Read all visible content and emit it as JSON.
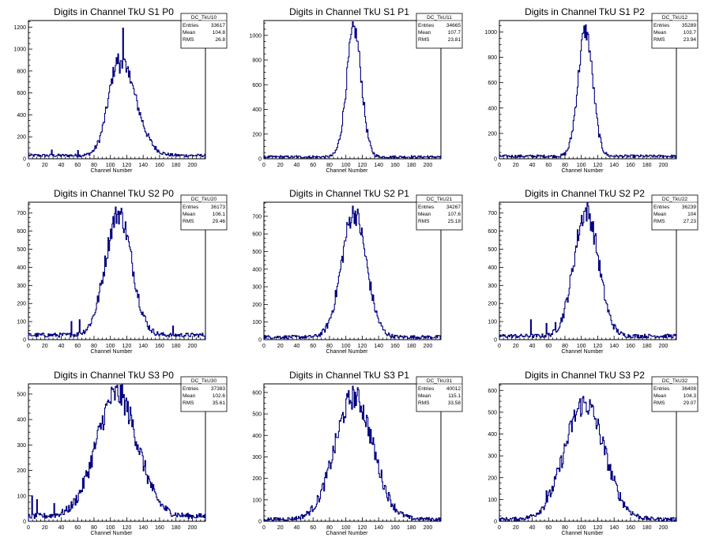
{
  "common": {
    "xlabel": "Channel Number",
    "stats_labels": [
      "Entries",
      "Mean",
      "RMS"
    ],
    "line_color": "#000080",
    "x_range": [
      0,
      216
    ]
  },
  "chart_data": [
    {
      "type": "histogram",
      "title": "Digits in Channel TkU S1 P0",
      "stats_name": "DC_TkU10",
      "entries": "33617",
      "mean": "104.8",
      "rms": "26.8",
      "xticks": [
        0,
        20,
        40,
        60,
        80,
        100,
        120,
        140,
        160,
        180,
        200
      ],
      "yticks": [
        0,
        200,
        400,
        600,
        800,
        1000,
        1200
      ],
      "ylim": [
        0,
        1260
      ],
      "bg": 30,
      "peak_center": 111,
      "peak_sigma": 13,
      "peak_height": 910,
      "tail": "right",
      "spikes": [
        {
          "x": 111,
          "y": 780
        },
        {
          "x": 115,
          "y": 1190
        },
        {
          "x": 119,
          "y": 790
        },
        {
          "x": 123,
          "y": 800
        },
        {
          "x": 28,
          "y": 80
        },
        {
          "x": 60,
          "y": 75
        }
      ]
    },
    {
      "type": "histogram",
      "title": "Digits in Channel TkU S1 P1",
      "stats_name": "DC_TkU11",
      "entries": "34665",
      "mean": "107.7",
      "rms": "23.81",
      "xticks": [
        0,
        20,
        40,
        60,
        80,
        100,
        120,
        140,
        160,
        180,
        200
      ],
      "yticks": [
        0,
        200,
        400,
        600,
        800,
        1000
      ],
      "ylim": [
        0,
        1120
      ],
      "bg": 15,
      "peak_center": 110,
      "peak_sigma": 9,
      "peak_height": 1050,
      "tail": "both",
      "spikes": []
    },
    {
      "type": "histogram",
      "title": "Digits in Channel TkU S1 P2",
      "stats_name": "DC_TkU12",
      "entries": "35289",
      "mean": "103.7",
      "rms": "23.94",
      "xticks": [
        0,
        20,
        40,
        60,
        80,
        100,
        120,
        140,
        160,
        180,
        200
      ],
      "yticks": [
        0,
        200,
        400,
        600,
        800,
        1000
      ],
      "ylim": [
        0,
        1090
      ],
      "bg": 20,
      "peak_center": 105,
      "peak_sigma": 9,
      "peak_height": 1010,
      "tail": "both",
      "spikes": []
    },
    {
      "type": "histogram",
      "title": "Digits in Channel TkU S2 P0",
      "stats_name": "DC_TkU20",
      "entries": "36173",
      "mean": "106.1",
      "rms": "29.46",
      "xticks": [
        0,
        20,
        40,
        60,
        80,
        100,
        120,
        140,
        160,
        180,
        200
      ],
      "yticks": [
        0,
        100,
        200,
        300,
        400,
        500,
        600,
        700
      ],
      "ylim": [
        0,
        760
      ],
      "bg": 25,
      "peak_center": 110,
      "peak_sigma": 16,
      "peak_height": 700,
      "tail": "both",
      "spikes": [
        {
          "x": 52,
          "y": 100
        },
        {
          "x": 62,
          "y": 110
        },
        {
          "x": 176,
          "y": 75
        }
      ]
    },
    {
      "type": "histogram",
      "title": "Digits in Channel TkU S2 P1",
      "stats_name": "DC_TkU21",
      "entries": "34267",
      "mean": "107.6",
      "rms": "25.18",
      "xticks": [
        0,
        20,
        40,
        60,
        80,
        100,
        120,
        140,
        160,
        180,
        200
      ],
      "yticks": [
        0,
        100,
        200,
        300,
        400,
        500,
        600,
        700
      ],
      "ylim": [
        0,
        780
      ],
      "bg": 15,
      "peak_center": 110,
      "peak_sigma": 15,
      "peak_height": 720,
      "tail": "both",
      "spikes": []
    },
    {
      "type": "histogram",
      "title": "Digits in Channel TkU S2 P2",
      "stats_name": "DC_TkU22",
      "entries": "36239",
      "mean": "104",
      "rms": "27.23",
      "xticks": [
        0,
        20,
        40,
        60,
        80,
        100,
        120,
        140,
        160,
        180,
        200
      ],
      "yticks": [
        0,
        100,
        200,
        300,
        400,
        500,
        600,
        700
      ],
      "ylim": [
        0,
        760
      ],
      "bg": 20,
      "peak_center": 106,
      "peak_sigma": 15,
      "peak_height": 710,
      "tail": "both",
      "spikes": [
        {
          "x": 38,
          "y": 110
        },
        {
          "x": 57,
          "y": 90
        },
        {
          "x": 68,
          "y": 95
        }
      ]
    },
    {
      "type": "histogram",
      "title": "Digits in Channel TkU S3 P0",
      "stats_name": "DC_TkU30",
      "entries": "37383",
      "mean": "102.6",
      "rms": "35.61",
      "xticks": [
        0,
        20,
        40,
        60,
        80,
        100,
        120,
        140,
        160,
        180,
        200
      ],
      "yticks": [
        0,
        100,
        200,
        300,
        400,
        500
      ],
      "ylim": [
        0,
        540
      ],
      "bg": 20,
      "peak_center": 108,
      "peak_sigma": 25,
      "peak_height": 500,
      "tail": "both",
      "spikes": [
        {
          "x": 104,
          "y": 510
        },
        {
          "x": 151,
          "y": 120
        },
        {
          "x": 4,
          "y": 100
        },
        {
          "x": 10,
          "y": 85
        },
        {
          "x": 31,
          "y": 70
        }
      ]
    },
    {
      "type": "histogram",
      "title": "Digits in Channel TkU S3 P1",
      "stats_name": "DC_TkU31",
      "entries": "40012",
      "mean": "115.1",
      "rms": "33.58",
      "xticks": [
        0,
        20,
        40,
        60,
        80,
        100,
        120,
        140,
        160,
        180,
        200
      ],
      "yticks": [
        0,
        100,
        200,
        300,
        400,
        500,
        600
      ],
      "ylim": [
        0,
        640
      ],
      "bg": 10,
      "peak_center": 110,
      "peak_sigma": 23,
      "peak_height": 580,
      "tail": "both",
      "spikes": []
    },
    {
      "type": "histogram",
      "title": "Digits in Channel TkU S3 P2",
      "stats_name": "DC_TkU32",
      "entries": "36408",
      "mean": "104.3",
      "rms": "29.07",
      "xticks": [
        0,
        20,
        40,
        60,
        80,
        100,
        120,
        140,
        160,
        180,
        200
      ],
      "yticks": [
        0,
        100,
        200,
        300,
        400,
        500,
        600
      ],
      "ylim": [
        0,
        630
      ],
      "bg": 10,
      "peak_center": 104,
      "peak_sigma": 24,
      "peak_height": 540,
      "tail": "both",
      "spikes": [
        {
          "x": 57,
          "y": 140
        }
      ]
    }
  ]
}
